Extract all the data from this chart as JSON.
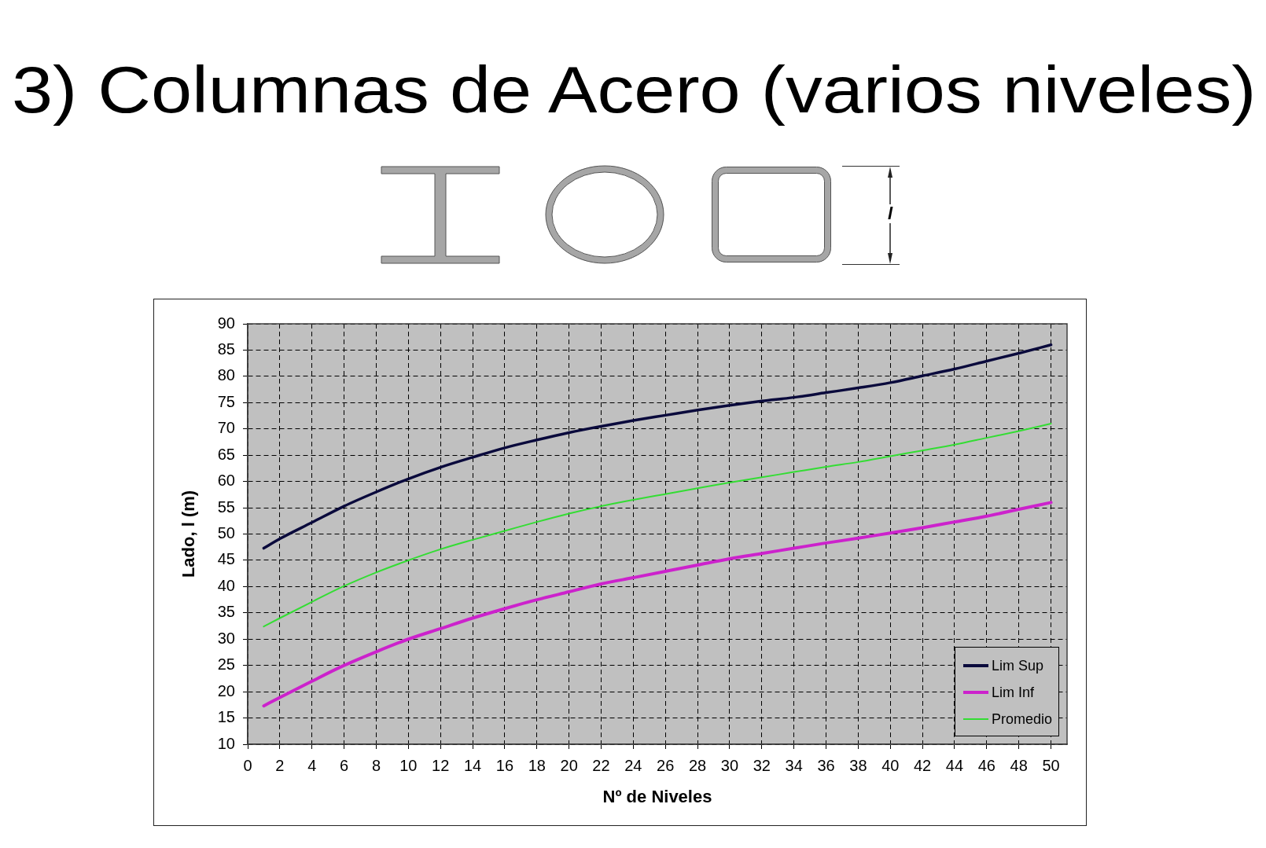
{
  "chart_data": {
    "type": "line",
    "title": "3) Columnas de Acero (varios niveles)",
    "xlabel": "Nº de Niveles",
    "ylabel": "Lado, l (m)",
    "annotations": [
      "l"
    ],
    "x": [
      1,
      2,
      4,
      6,
      8,
      10,
      12,
      14,
      16,
      18,
      20,
      22,
      24,
      26,
      28,
      30,
      32,
      34,
      36,
      38,
      40,
      42,
      44,
      46,
      48,
      50
    ],
    "series": [
      {
        "name": "Lim Sup",
        "color": "#0a0a3c",
        "values": [
          47.3,
          49.1,
          52.2,
          55.3,
          58.0,
          60.5,
          62.7,
          64.6,
          66.4,
          67.9,
          69.3,
          70.5,
          71.6,
          72.6,
          73.6,
          74.5,
          75.3,
          76.0,
          76.9,
          77.8,
          78.8,
          80.1,
          81.4,
          82.9,
          84.4,
          86.0
        ]
      },
      {
        "name": "Lim Inf",
        "color": "#cc22cc",
        "values": [
          17.3,
          18.9,
          22.0,
          25.0,
          27.6,
          30.0,
          32.0,
          34.0,
          35.8,
          37.5,
          39.0,
          40.5,
          41.7,
          42.9,
          44.1,
          45.3,
          46.3,
          47.3,
          48.3,
          49.2,
          50.2,
          51.2,
          52.3,
          53.4,
          54.7,
          56.0
        ]
      },
      {
        "name": "Promedio",
        "color": "#33dd33",
        "values": [
          32.4,
          34.0,
          37.1,
          40.1,
          42.7,
          45.0,
          47.1,
          48.9,
          50.6,
          52.3,
          53.9,
          55.3,
          56.5,
          57.6,
          58.7,
          59.8,
          60.8,
          61.8,
          62.8,
          63.7,
          64.8,
          65.9,
          67.0,
          68.3,
          69.6,
          71.0
        ]
      }
    ],
    "xlim": [
      0,
      51
    ],
    "xticks": [
      0,
      2,
      4,
      6,
      8,
      10,
      12,
      14,
      16,
      18,
      20,
      22,
      24,
      26,
      28,
      30,
      32,
      34,
      36,
      38,
      40,
      42,
      44,
      46,
      48,
      50
    ],
    "ylim": [
      10,
      90
    ],
    "yticks": [
      10,
      15,
      20,
      25,
      30,
      35,
      40,
      45,
      50,
      55,
      60,
      65,
      70,
      75,
      80,
      85,
      90
    ],
    "grid": true,
    "legend": "bottom right",
    "marker": "none",
    "line_style": "solid"
  }
}
